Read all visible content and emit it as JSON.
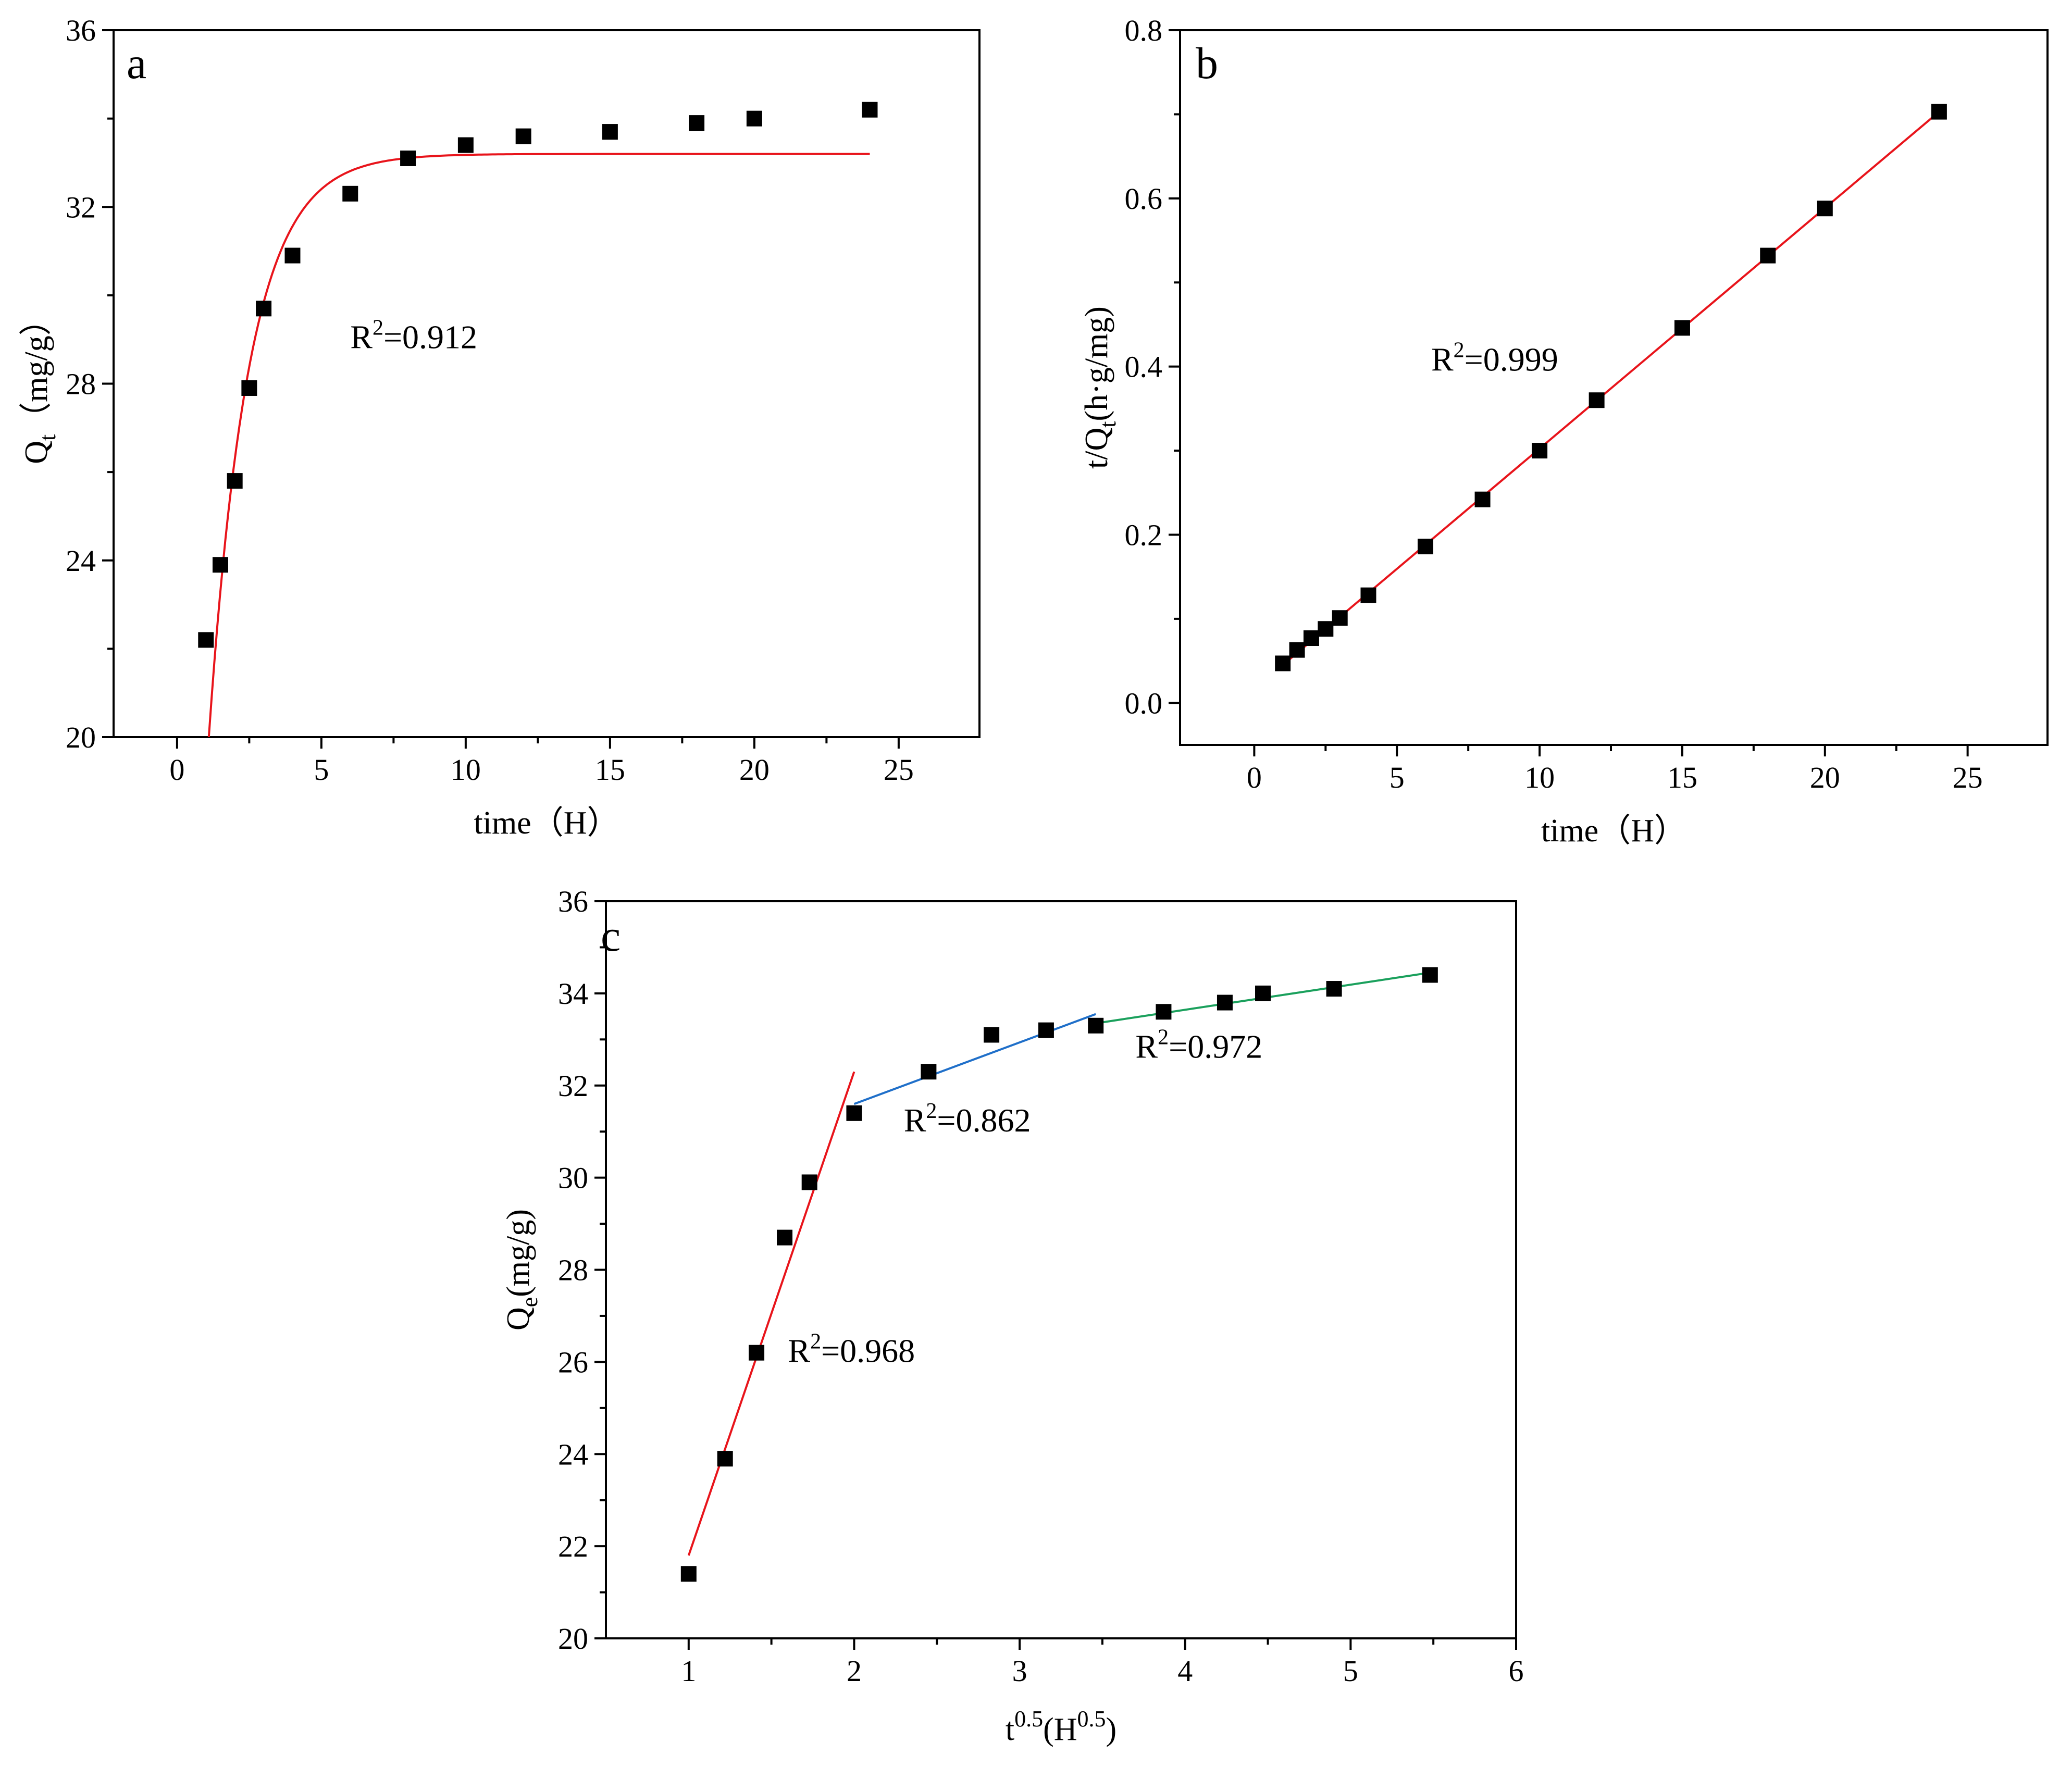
{
  "chart_data": [
    {
      "panel": "a",
      "type": "scatter",
      "xlabel": "time（H）",
      "ylabel": {
        "main": "Q",
        "sub": "t",
        "rest": "（mg/g）"
      },
      "xlim": [
        -2.2,
        27.8
      ],
      "ylim": [
        20,
        36
      ],
      "xticks": [
        0,
        5,
        10,
        15,
        20,
        25
      ],
      "yticks": [
        20,
        24,
        28,
        32,
        36
      ],
      "points": {
        "x": [
          1,
          1.5,
          2,
          2.5,
          3,
          4,
          6,
          8,
          10,
          12,
          15,
          18,
          20,
          24
        ],
        "y": [
          22.2,
          23.9,
          25.8,
          27.9,
          29.7,
          30.9,
          32.3,
          33.1,
          33.4,
          33.6,
          33.7,
          33.9,
          34.0,
          34.2
        ]
      },
      "fits": [
        {
          "model": "pseudo-first-order",
          "qe": 33.2,
          "k": 0.72,
          "t0": 1.1,
          "x_range": [
            1.1,
            24
          ],
          "color": "#e8141b"
        }
      ],
      "annotations": [
        {
          "text": "R",
          "sup": "2",
          "rest": "=0.912",
          "x": 6,
          "y": 28.8
        }
      ]
    },
    {
      "panel": "b",
      "type": "scatter",
      "xlabel": "time（H）",
      "ylabel": {
        "main": "t/Q",
        "sub": "t",
        "rest": "(h·g/mg)"
      },
      "xlim": [
        -2.6,
        27.8
      ],
      "ylim": [
        -0.05,
        0.8
      ],
      "xticks": [
        0,
        5,
        10,
        15,
        20,
        25
      ],
      "yticks": [
        0.0,
        0.2,
        0.4,
        0.6,
        0.8
      ],
      "ytick_labels": [
        "0.0",
        "0.2",
        "0.4",
        "0.6",
        "0.8"
      ],
      "points": {
        "x": [
          1,
          1.5,
          2,
          2.5,
          3,
          4,
          6,
          8,
          10,
          12,
          15,
          18,
          20,
          24
        ],
        "y": [
          0.047,
          0.063,
          0.077,
          0.088,
          0.101,
          0.128,
          0.186,
          0.242,
          0.3,
          0.36,
          0.446,
          0.532,
          0.588,
          0.703
        ]
      },
      "fits": [
        {
          "model": "linear",
          "x_range": [
            1,
            24
          ],
          "y_range": [
            0.045,
            0.703
          ],
          "color": "#e8141b"
        }
      ],
      "annotations": [
        {
          "text": "R",
          "sup": "2",
          "rest": "=0.999",
          "x": 6.2,
          "y": 0.395
        }
      ]
    },
    {
      "panel": "c",
      "type": "scatter",
      "xlabel": {
        "main": "t",
        "sup": "0.5",
        "rest": "(H",
        "sup2": "0.5",
        "end": ")"
      },
      "ylabel": {
        "main": "Q",
        "sub": "e",
        "rest": "(mg/g)"
      },
      "xlim": [
        0.5,
        6
      ],
      "ylim": [
        20,
        36
      ],
      "xticks": [
        1,
        2,
        3,
        4,
        5,
        6
      ],
      "yticks": [
        20,
        22,
        24,
        26,
        28,
        30,
        32,
        34,
        36
      ],
      "points": {
        "x": [
          1.0,
          1.22,
          1.41,
          1.58,
          1.73,
          2.0,
          2.45,
          2.83,
          3.16,
          3.46,
          3.87,
          4.24,
          4.47,
          4.9,
          5.48
        ],
        "y": [
          21.4,
          23.9,
          26.2,
          28.7,
          29.9,
          31.4,
          32.3,
          33.1,
          33.2,
          33.3,
          33.6,
          33.8,
          34.0,
          34.1,
          34.4
        ]
      },
      "fits": [
        {
          "model": "linear",
          "x_range": [
            1.0,
            2.0
          ],
          "y_range": [
            21.8,
            32.3
          ],
          "color": "#e8141b"
        },
        {
          "model": "linear",
          "x_range": [
            2.0,
            3.46
          ],
          "y_range": [
            31.6,
            33.55
          ],
          "color": "#1f6fc9"
        },
        {
          "model": "linear",
          "x_range": [
            3.46,
            5.48
          ],
          "y_range": [
            33.35,
            34.45
          ],
          "color": "#1aa05c"
        }
      ],
      "annotations": [
        {
          "text": "R",
          "sup": "2",
          "rest": "=0.968",
          "x": 1.6,
          "y": 26.0
        },
        {
          "text": "R",
          "sup": "2",
          "rest": "=0.862",
          "x": 2.3,
          "y": 31.0
        },
        {
          "text": "R",
          "sup": "2",
          "rest": "=0.972",
          "x": 3.7,
          "y": 32.6
        }
      ]
    }
  ]
}
